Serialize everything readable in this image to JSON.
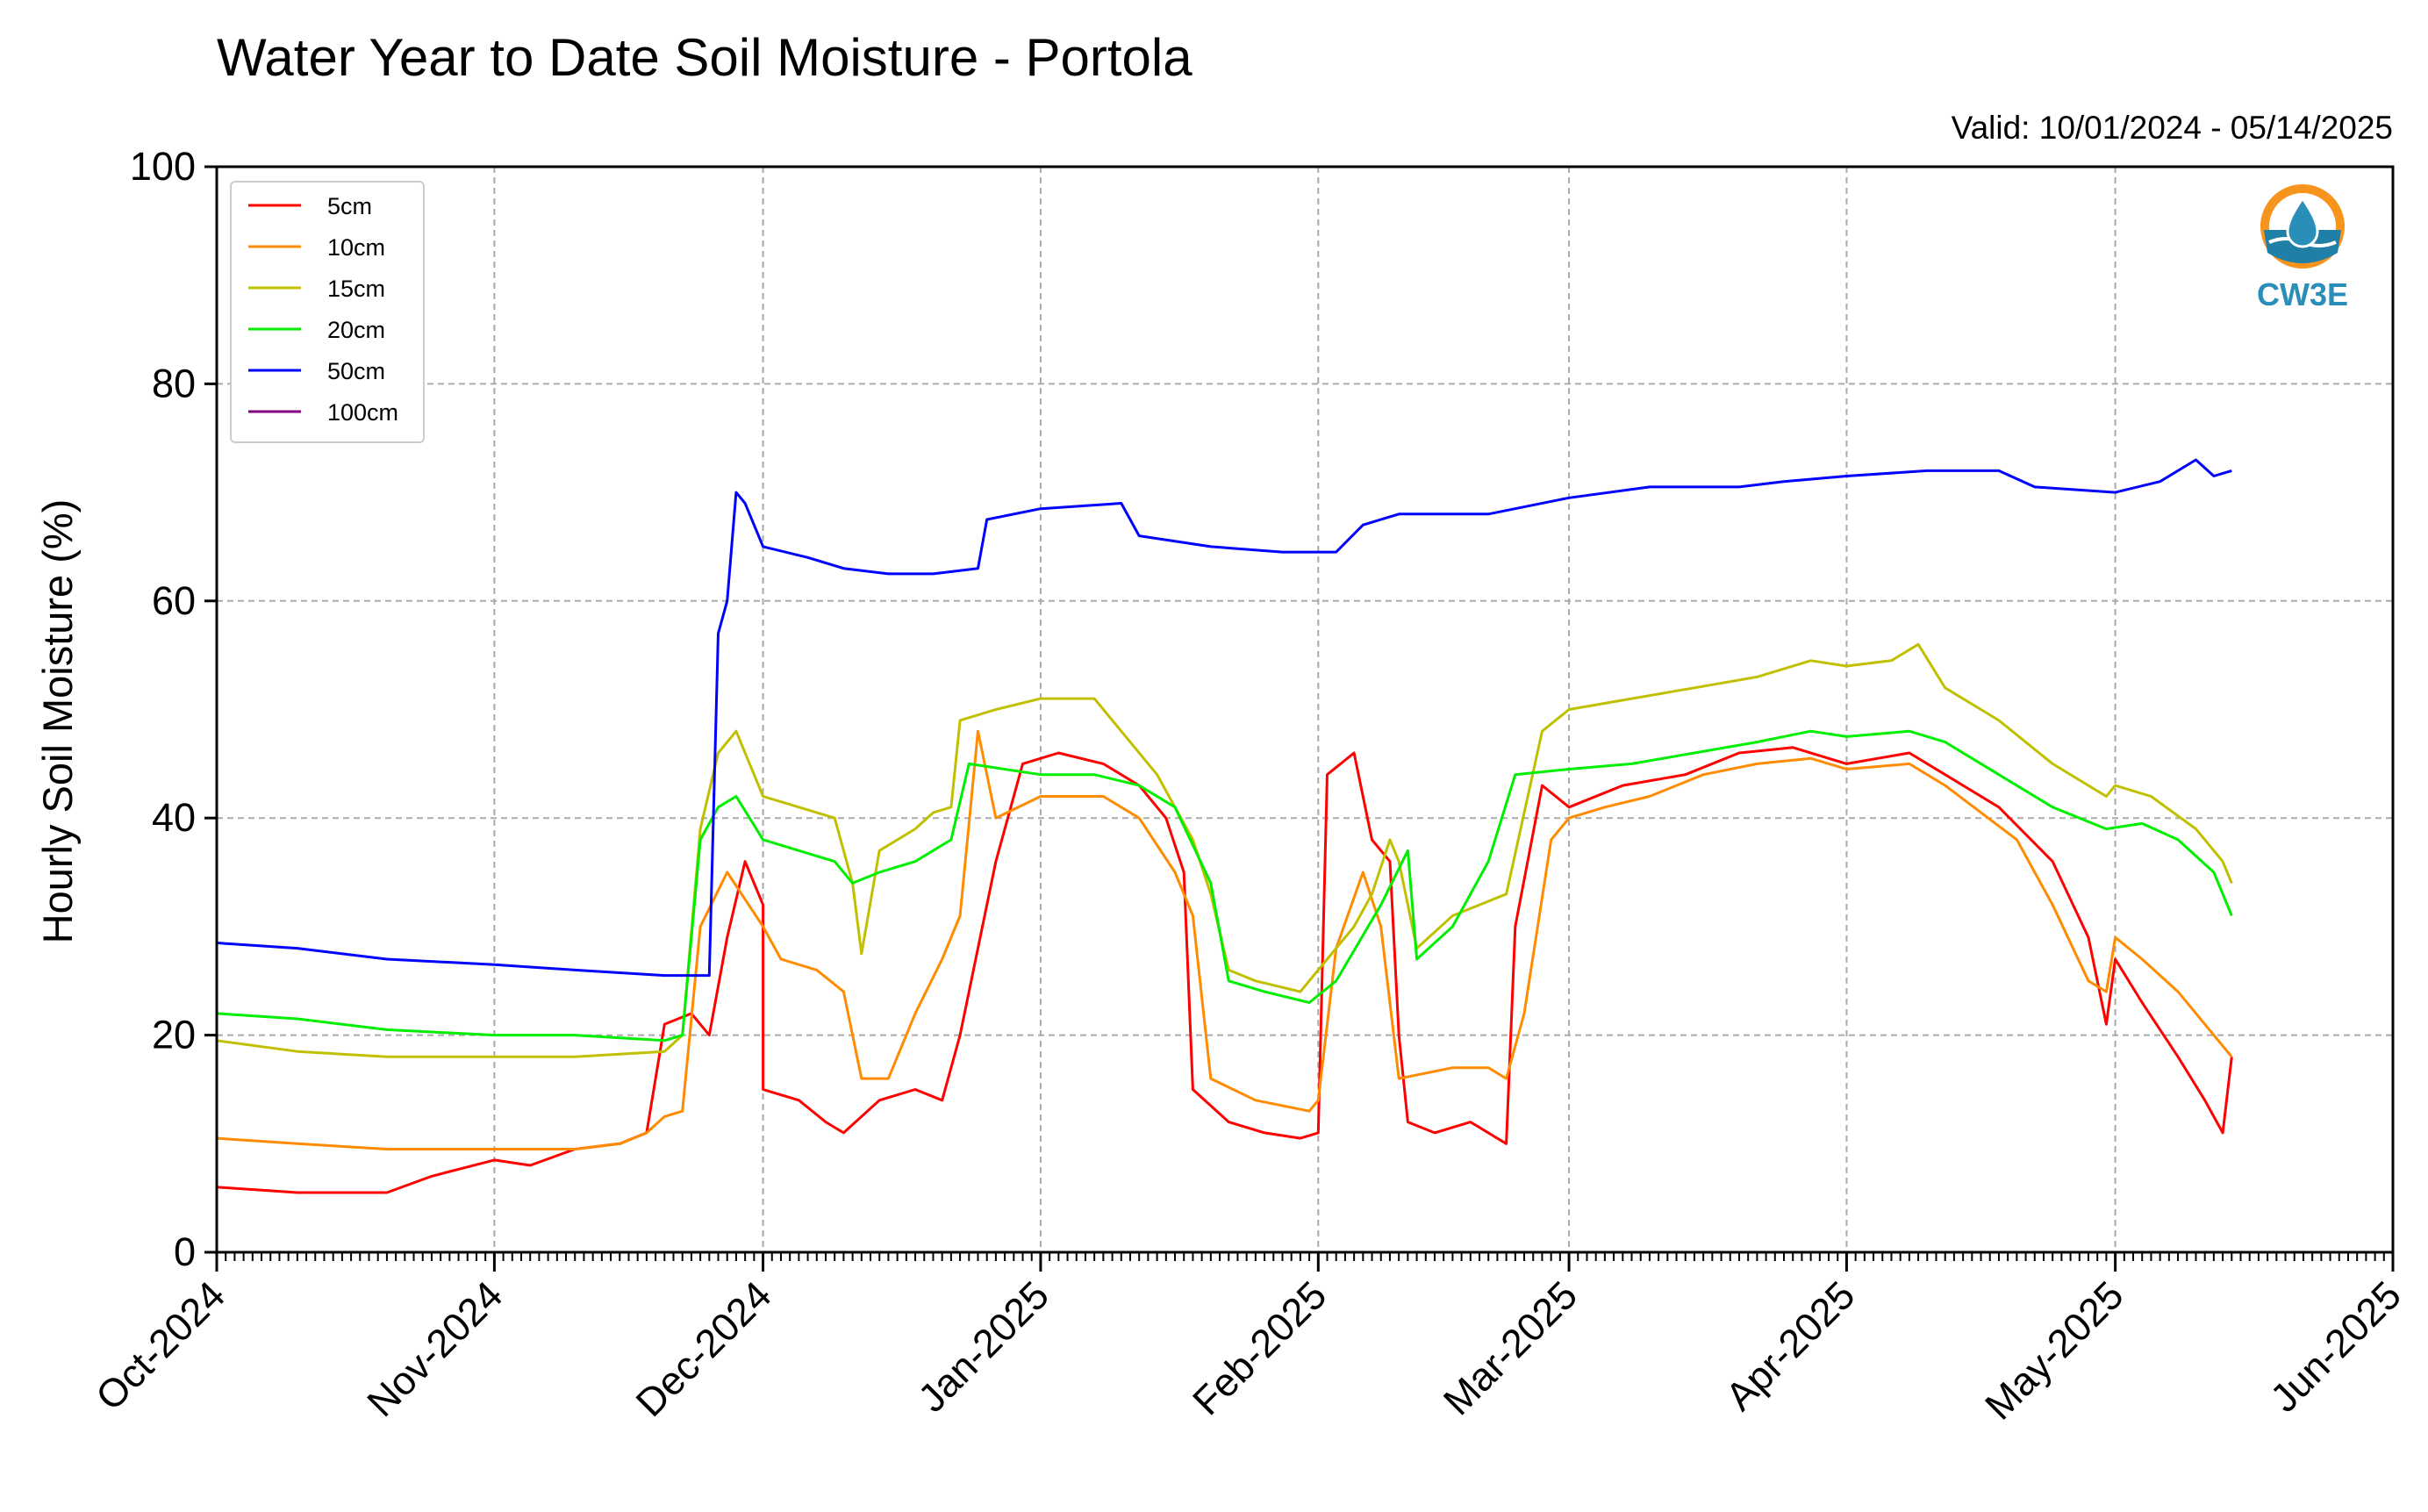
{
  "chart_data": {
    "type": "line",
    "title": "Water Year to Date Soil Moisture - Portola",
    "subtitle": "Valid: 10/01/2024 - 05/14/2025",
    "ylabel": "Hourly Soil Moisture (%)",
    "xlabel": "",
    "xlim": [
      "2024-10-01",
      "2025-06-01"
    ],
    "ylim": [
      0,
      100
    ],
    "yticks": [
      0,
      20,
      40,
      60,
      80,
      100
    ],
    "xticks": [
      {
        "date": "2024-10-01",
        "label": "Oct-2024"
      },
      {
        "date": "2024-11-01",
        "label": "Nov-2024"
      },
      {
        "date": "2024-12-01",
        "label": "Dec-2024"
      },
      {
        "date": "2025-01-01",
        "label": "Jan-2025"
      },
      {
        "date": "2025-02-01",
        "label": "Feb-2025"
      },
      {
        "date": "2025-03-01",
        "label": "Mar-2025"
      },
      {
        "date": "2025-04-01",
        "label": "Apr-2025"
      },
      {
        "date": "2025-05-01",
        "label": "May-2025"
      },
      {
        "date": "2025-06-01",
        "label": "Jun-2025"
      }
    ],
    "grid": true,
    "legend_position": "top-left",
    "series": [
      {
        "name": "5cm",
        "color": "#ff0000",
        "points": [
          [
            "2024-10-01",
            6
          ],
          [
            "2024-10-10",
            5.5
          ],
          [
            "2024-10-20",
            5.5
          ],
          [
            "2024-10-25",
            7
          ],
          [
            "2024-11-01",
            8.5
          ],
          [
            "2024-11-05",
            8
          ],
          [
            "2024-11-10",
            9.5
          ],
          [
            "2024-11-15",
            10
          ],
          [
            "2024-11-18",
            11
          ],
          [
            "2024-11-20",
            21
          ],
          [
            "2024-11-23",
            22
          ],
          [
            "2024-11-25",
            20
          ],
          [
            "2024-11-27",
            29
          ],
          [
            "2024-11-29",
            36
          ],
          [
            "2024-12-01",
            32
          ],
          [
            "2024-12-01",
            15
          ],
          [
            "2024-12-05",
            14
          ],
          [
            "2024-12-08",
            12
          ],
          [
            "2024-12-10",
            11
          ],
          [
            "2024-12-14",
            14
          ],
          [
            "2024-12-18",
            15
          ],
          [
            "2024-12-21",
            14
          ],
          [
            "2024-12-23",
            20
          ],
          [
            "2024-12-25",
            28
          ],
          [
            "2024-12-27",
            36
          ],
          [
            "2024-12-30",
            45
          ],
          [
            "2025-01-03",
            46
          ],
          [
            "2025-01-08",
            45
          ],
          [
            "2025-01-12",
            43
          ],
          [
            "2025-01-15",
            40
          ],
          [
            "2025-01-17",
            35
          ],
          [
            "2025-01-18",
            15
          ],
          [
            "2025-01-22",
            12
          ],
          [
            "2025-01-26",
            11
          ],
          [
            "2025-01-30",
            10.5
          ],
          [
            "2025-02-01",
            11
          ],
          [
            "2025-02-02",
            44
          ],
          [
            "2025-02-05",
            46
          ],
          [
            "2025-02-07",
            38
          ],
          [
            "2025-02-09",
            36
          ],
          [
            "2025-02-10",
            20
          ],
          [
            "2025-02-11",
            12
          ],
          [
            "2025-02-14",
            11
          ],
          [
            "2025-02-18",
            12
          ],
          [
            "2025-02-22",
            10
          ],
          [
            "2025-02-23",
            30
          ],
          [
            "2025-02-26",
            43
          ],
          [
            "2025-03-01",
            41
          ],
          [
            "2025-03-07",
            43
          ],
          [
            "2025-03-14",
            44
          ],
          [
            "2025-03-20",
            46
          ],
          [
            "2025-03-26",
            46.5
          ],
          [
            "2025-04-01",
            45
          ],
          [
            "2025-04-08",
            46
          ],
          [
            "2025-04-12",
            44
          ],
          [
            "2025-04-18",
            41
          ],
          [
            "2025-04-24",
            36
          ],
          [
            "2025-04-28",
            29
          ],
          [
            "2025-04-30",
            21
          ],
          [
            "2025-05-01",
            27
          ],
          [
            "2025-05-04",
            23
          ],
          [
            "2025-05-08",
            18
          ],
          [
            "2025-05-11",
            14
          ],
          [
            "2025-05-13",
            11
          ],
          [
            "2025-05-14",
            18
          ]
        ]
      },
      {
        "name": "10cm",
        "color": "#ff8c00",
        "points": [
          [
            "2024-10-01",
            10.5
          ],
          [
            "2024-10-10",
            10
          ],
          [
            "2024-10-20",
            9.5
          ],
          [
            "2024-11-01",
            9.5
          ],
          [
            "2024-11-10",
            9.5
          ],
          [
            "2024-11-15",
            10
          ],
          [
            "2024-11-18",
            11
          ],
          [
            "2024-11-20",
            12.5
          ],
          [
            "2024-11-22",
            13
          ],
          [
            "2024-11-24",
            30
          ],
          [
            "2024-11-27",
            35
          ],
          [
            "2024-12-01",
            30
          ],
          [
            "2024-12-03",
            27
          ],
          [
            "2024-12-07",
            26
          ],
          [
            "2024-12-10",
            24
          ],
          [
            "2024-12-12",
            16
          ],
          [
            "2024-12-15",
            16
          ],
          [
            "2024-12-18",
            22
          ],
          [
            "2024-12-21",
            27
          ],
          [
            "2024-12-23",
            31
          ],
          [
            "2024-12-25",
            48
          ],
          [
            "2024-12-27",
            40
          ],
          [
            "2025-01-01",
            42
          ],
          [
            "2025-01-08",
            42
          ],
          [
            "2025-01-12",
            40
          ],
          [
            "2025-01-16",
            35
          ],
          [
            "2025-01-18",
            31
          ],
          [
            "2025-01-20",
            16
          ],
          [
            "2025-01-25",
            14
          ],
          [
            "2025-01-31",
            13
          ],
          [
            "2025-02-01",
            14
          ],
          [
            "2025-02-03",
            28
          ],
          [
            "2025-02-06",
            35
          ],
          [
            "2025-02-08",
            30
          ],
          [
            "2025-02-10",
            16
          ],
          [
            "2025-02-16",
            17
          ],
          [
            "2025-02-20",
            17
          ],
          [
            "2025-02-22",
            16
          ],
          [
            "2025-02-24",
            22
          ],
          [
            "2025-02-27",
            38
          ],
          [
            "2025-03-01",
            40
          ],
          [
            "2025-03-05",
            41
          ],
          [
            "2025-03-10",
            42
          ],
          [
            "2025-03-16",
            44
          ],
          [
            "2025-03-22",
            45
          ],
          [
            "2025-03-28",
            45.5
          ],
          [
            "2025-04-01",
            44.5
          ],
          [
            "2025-04-08",
            45
          ],
          [
            "2025-04-12",
            43
          ],
          [
            "2025-04-20",
            38
          ],
          [
            "2025-04-24",
            32
          ],
          [
            "2025-04-28",
            25
          ],
          [
            "2025-04-30",
            24
          ],
          [
            "2025-05-01",
            29
          ],
          [
            "2025-05-04",
            27
          ],
          [
            "2025-05-08",
            24
          ],
          [
            "2025-05-12",
            20
          ],
          [
            "2025-05-14",
            18
          ]
        ]
      },
      {
        "name": "15cm",
        "color": "#c0c000",
        "points": [
          [
            "2024-10-01",
            19.5
          ],
          [
            "2024-10-10",
            18.5
          ],
          [
            "2024-10-20",
            18
          ],
          [
            "2024-11-01",
            18
          ],
          [
            "2024-11-10",
            18
          ],
          [
            "2024-11-20",
            18.5
          ],
          [
            "2024-11-22",
            20
          ],
          [
            "2024-11-24",
            39
          ],
          [
            "2024-11-26",
            46
          ],
          [
            "2024-11-28",
            48
          ],
          [
            "2024-12-01",
            42
          ],
          [
            "2024-12-05",
            41
          ],
          [
            "2024-12-09",
            40
          ],
          [
            "2024-12-11",
            34
          ],
          [
            "2024-12-12",
            27.5
          ],
          [
            "2024-12-14",
            37
          ],
          [
            "2024-12-18",
            39
          ],
          [
            "2024-12-20",
            40.5
          ],
          [
            "2024-12-22",
            41
          ],
          [
            "2024-12-23",
            49
          ],
          [
            "2024-12-27",
            50
          ],
          [
            "2025-01-01",
            51
          ],
          [
            "2025-01-07",
            51
          ],
          [
            "2025-01-10",
            48
          ],
          [
            "2025-01-14",
            44
          ],
          [
            "2025-01-18",
            38
          ],
          [
            "2025-01-20",
            33
          ],
          [
            "2025-01-22",
            26
          ],
          [
            "2025-01-25",
            25
          ],
          [
            "2025-01-30",
            24
          ],
          [
            "2025-02-02",
            27
          ],
          [
            "2025-02-05",
            30
          ],
          [
            "2025-02-07",
            33
          ],
          [
            "2025-02-09",
            38
          ],
          [
            "2025-02-10",
            36
          ],
          [
            "2025-02-12",
            28
          ],
          [
            "2025-02-16",
            31
          ],
          [
            "2025-02-22",
            33
          ],
          [
            "2025-02-26",
            48
          ],
          [
            "2025-03-01",
            50
          ],
          [
            "2025-03-08",
            51
          ],
          [
            "2025-03-15",
            52
          ],
          [
            "2025-03-22",
            53
          ],
          [
            "2025-03-28",
            54.5
          ],
          [
            "2025-04-01",
            54
          ],
          [
            "2025-04-06",
            54.5
          ],
          [
            "2025-04-09",
            56
          ],
          [
            "2025-04-12",
            52
          ],
          [
            "2025-04-18",
            49
          ],
          [
            "2025-04-24",
            45
          ],
          [
            "2025-04-30",
            42
          ],
          [
            "2025-05-01",
            43
          ],
          [
            "2025-05-05",
            42
          ],
          [
            "2025-05-10",
            39
          ],
          [
            "2025-05-13",
            36
          ],
          [
            "2025-05-14",
            34
          ]
        ]
      },
      {
        "name": "20cm",
        "color": "#00ee00",
        "points": [
          [
            "2024-10-01",
            22
          ],
          [
            "2024-10-10",
            21.5
          ],
          [
            "2024-10-20",
            20.5
          ],
          [
            "2024-11-01",
            20
          ],
          [
            "2024-11-10",
            20
          ],
          [
            "2024-11-20",
            19.5
          ],
          [
            "2024-11-22",
            20
          ],
          [
            "2024-11-24",
            38
          ],
          [
            "2024-11-26",
            41
          ],
          [
            "2024-11-28",
            42
          ],
          [
            "2024-12-01",
            38
          ],
          [
            "2024-12-05",
            37
          ],
          [
            "2024-12-09",
            36
          ],
          [
            "2024-12-11",
            34
          ],
          [
            "2024-12-14",
            35
          ],
          [
            "2024-12-18",
            36
          ],
          [
            "2024-12-22",
            38
          ],
          [
            "2024-12-24",
            45
          ],
          [
            "2025-01-01",
            44
          ],
          [
            "2025-01-07",
            44
          ],
          [
            "2025-01-12",
            43
          ],
          [
            "2025-01-16",
            41
          ],
          [
            "2025-01-20",
            34
          ],
          [
            "2025-01-22",
            25
          ],
          [
            "2025-01-26",
            24
          ],
          [
            "2025-01-31",
            23
          ],
          [
            "2025-02-03",
            25
          ],
          [
            "2025-02-08",
            32
          ],
          [
            "2025-02-11",
            37
          ],
          [
            "2025-02-12",
            27
          ],
          [
            "2025-02-16",
            30
          ],
          [
            "2025-02-20",
            36
          ],
          [
            "2025-02-23",
            44
          ],
          [
            "2025-03-01",
            44.5
          ],
          [
            "2025-03-08",
            45
          ],
          [
            "2025-03-15",
            46
          ],
          [
            "2025-03-22",
            47
          ],
          [
            "2025-03-28",
            48
          ],
          [
            "2025-04-01",
            47.5
          ],
          [
            "2025-04-08",
            48
          ],
          [
            "2025-04-12",
            47
          ],
          [
            "2025-04-18",
            44
          ],
          [
            "2025-04-24",
            41
          ],
          [
            "2025-04-30",
            39
          ],
          [
            "2025-05-04",
            39.5
          ],
          [
            "2025-05-08",
            38
          ],
          [
            "2025-05-12",
            35
          ],
          [
            "2025-05-14",
            31
          ]
        ]
      },
      {
        "name": "50cm",
        "color": "#0000ff",
        "points": [
          [
            "2024-10-01",
            28.5
          ],
          [
            "2024-10-10",
            28
          ],
          [
            "2024-10-20",
            27
          ],
          [
            "2024-11-01",
            26.5
          ],
          [
            "2024-11-10",
            26
          ],
          [
            "2024-11-20",
            25.5
          ],
          [
            "2024-11-25",
            25.5
          ],
          [
            "2024-11-26",
            57
          ],
          [
            "2024-11-27",
            60
          ],
          [
            "2024-11-28",
            70
          ],
          [
            "2024-11-29",
            69
          ],
          [
            "2024-12-01",
            65
          ],
          [
            "2024-12-06",
            64
          ],
          [
            "2024-12-10",
            63
          ],
          [
            "2024-12-15",
            62.5
          ],
          [
            "2024-12-20",
            62.5
          ],
          [
            "2024-12-25",
            63
          ],
          [
            "2024-12-26",
            67.5
          ],
          [
            "2025-01-01",
            68.5
          ],
          [
            "2025-01-10",
            69
          ],
          [
            "2025-01-12",
            66
          ],
          [
            "2025-01-20",
            65
          ],
          [
            "2025-01-28",
            64.5
          ],
          [
            "2025-02-03",
            64.5
          ],
          [
            "2025-02-06",
            67
          ],
          [
            "2025-02-10",
            68
          ],
          [
            "2025-02-20",
            68
          ],
          [
            "2025-03-01",
            69.5
          ],
          [
            "2025-03-10",
            70.5
          ],
          [
            "2025-03-20",
            70.5
          ],
          [
            "2025-03-25",
            71
          ],
          [
            "2025-04-01",
            71.5
          ],
          [
            "2025-04-10",
            72
          ],
          [
            "2025-04-18",
            72
          ],
          [
            "2025-04-22",
            70.5
          ],
          [
            "2025-05-01",
            70
          ],
          [
            "2025-05-06",
            71
          ],
          [
            "2025-05-10",
            73
          ],
          [
            "2025-05-12",
            71.5
          ],
          [
            "2025-05-14",
            72
          ]
        ]
      },
      {
        "name": "100cm",
        "color": "#800080",
        "points": []
      }
    ]
  },
  "logo": {
    "text": "CW3E"
  }
}
